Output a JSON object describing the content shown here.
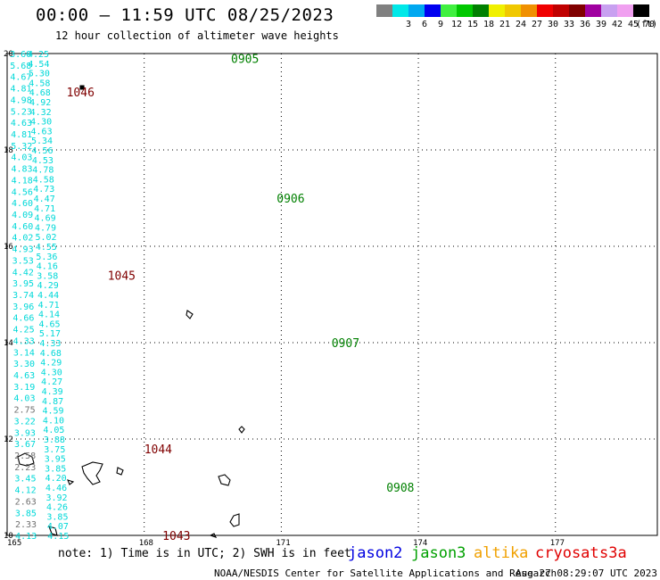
{
  "header": {
    "title": "00:00 – 11:59 UTC 08/25/2023",
    "subtitle": "12 hour collection of altimeter wave heights"
  },
  "legend": {
    "unit": "(ft)",
    "items": [
      {
        "label": "",
        "color": "#808080"
      },
      {
        "label": "3",
        "color": "#00e8e8"
      },
      {
        "label": "6",
        "color": "#00a8f0"
      },
      {
        "label": "9",
        "color": "#0000f0"
      },
      {
        "label": "12",
        "color": "#40f040"
      },
      {
        "label": "15",
        "color": "#00c800"
      },
      {
        "label": "18",
        "color": "#008000"
      },
      {
        "label": "21",
        "color": "#f0f000"
      },
      {
        "label": "24",
        "color": "#f0c800"
      },
      {
        "label": "27",
        "color": "#f09000"
      },
      {
        "label": "30",
        "color": "#f00000"
      },
      {
        "label": "33",
        "color": "#c00000"
      },
      {
        "label": "36",
        "color": "#800000"
      },
      {
        "label": "39",
        "color": "#a000a0"
      },
      {
        "label": "42",
        "color": "#c8a0f0"
      },
      {
        "label": "45",
        "color": "#f0a0f0"
      },
      {
        "label": "70",
        "color": "#000000"
      }
    ]
  },
  "map": {
    "lon_ticks": [
      165,
      168,
      171,
      174,
      177
    ],
    "lat_ticks": [
      10,
      12,
      14,
      16,
      18,
      20
    ],
    "colors": {
      "cyan": "#00d8d8",
      "gray": "#707070",
      "green": "#008000",
      "maroon": "#800000"
    },
    "tracks": [
      {
        "start": [
          3.0,
          20.0
        ],
        "end": [
          8.9,
          10.0
        ],
        "values": [
          "3.60",
          "5.68",
          "4.67",
          "4.81",
          "4.98",
          "5.23",
          "4.63",
          "4.81",
          "5.32",
          "4.03",
          "4.83",
          "4.18",
          "4.56",
          "4.60",
          "4.09",
          "4.60",
          "4.02",
          "4.93",
          "3.53",
          "4.42",
          "3.95",
          "3.74",
          "3.96",
          "4.66",
          "4.25",
          "4.33",
          "3.14",
          "3.30",
          "4.63",
          "3.19",
          "4.03",
          "2.75",
          "3.22",
          "3.93",
          "3.67",
          "2.58",
          "2.23",
          "3.45",
          "4.12",
          "2.63",
          "3.85",
          "2.33",
          "4.13"
        ],
        "gray": [
          31,
          35,
          36,
          39,
          41
        ]
      },
      {
        "start": [
          22.4,
          20.0
        ],
        "end": [
          44.2,
          10.0
        ],
        "values": [
          "4.25",
          "4.54",
          "5.30",
          "4.58",
          "4.68",
          "4.92",
          "4.32",
          "4.30",
          "4.63",
          "5.34",
          "4.56",
          "4.53",
          "4.78",
          "4.58",
          "4.73",
          "4.47",
          "4.71",
          "4.69",
          "4.79",
          "5.02",
          "4.55",
          "5.36",
          "4.16",
          "3.58",
          "4.29",
          "4.44",
          "4.71",
          "4.14",
          "4.65",
          "5.17",
          "4.33",
          "4.68",
          "4.29",
          "4.30",
          "4.27",
          "4.39",
          "4.87",
          "4.59",
          "4.10",
          "4.05",
          "3.88",
          "3.75",
          "3.95",
          "3.85",
          "4.20",
          "4.46",
          "3.92",
          "4.26",
          "3.85",
          "4.07",
          "4.15"
        ],
        "gray": []
      }
    ],
    "pass_labels": [
      {
        "text": "1046",
        "lon": 166.3,
        "lat": 19.2,
        "color": "maroon"
      },
      {
        "text": "1045",
        "lon": 167.2,
        "lat": 15.4,
        "color": "maroon"
      },
      {
        "text": "1044",
        "lon": 168.0,
        "lat": 11.8,
        "color": "maroon"
      },
      {
        "text": "1043",
        "lon": 168.4,
        "lat": 10.0,
        "color": "maroon"
      },
      {
        "text": "0905",
        "lon": 169.9,
        "lat": 19.9,
        "color": "green"
      },
      {
        "text": "0906",
        "lon": 170.9,
        "lat": 17.0,
        "color": "green"
      },
      {
        "text": "0907",
        "lon": 172.1,
        "lat": 14.0,
        "color": "green"
      },
      {
        "text": "0908",
        "lon": 173.3,
        "lat": 11.0,
        "color": "green"
      }
    ]
  },
  "footer": {
    "note": "note: 1) Time is in UTC; 2) SWH is in feet",
    "satellites": [
      {
        "name": "jason2",
        "color": "#0000e0"
      },
      {
        "name": "jason3",
        "color": "#00a000"
      },
      {
        "name": "altika",
        "color": "#f0a000"
      },
      {
        "name": "cryosat",
        "color": "#e00000"
      },
      {
        "name": "s3a",
        "color": "#e00000"
      }
    ],
    "credit": "NOAA/NESDIS Center for Satellite Applications and Research",
    "timestamp": "Aug 27 08:29:07 UTC 2023"
  }
}
